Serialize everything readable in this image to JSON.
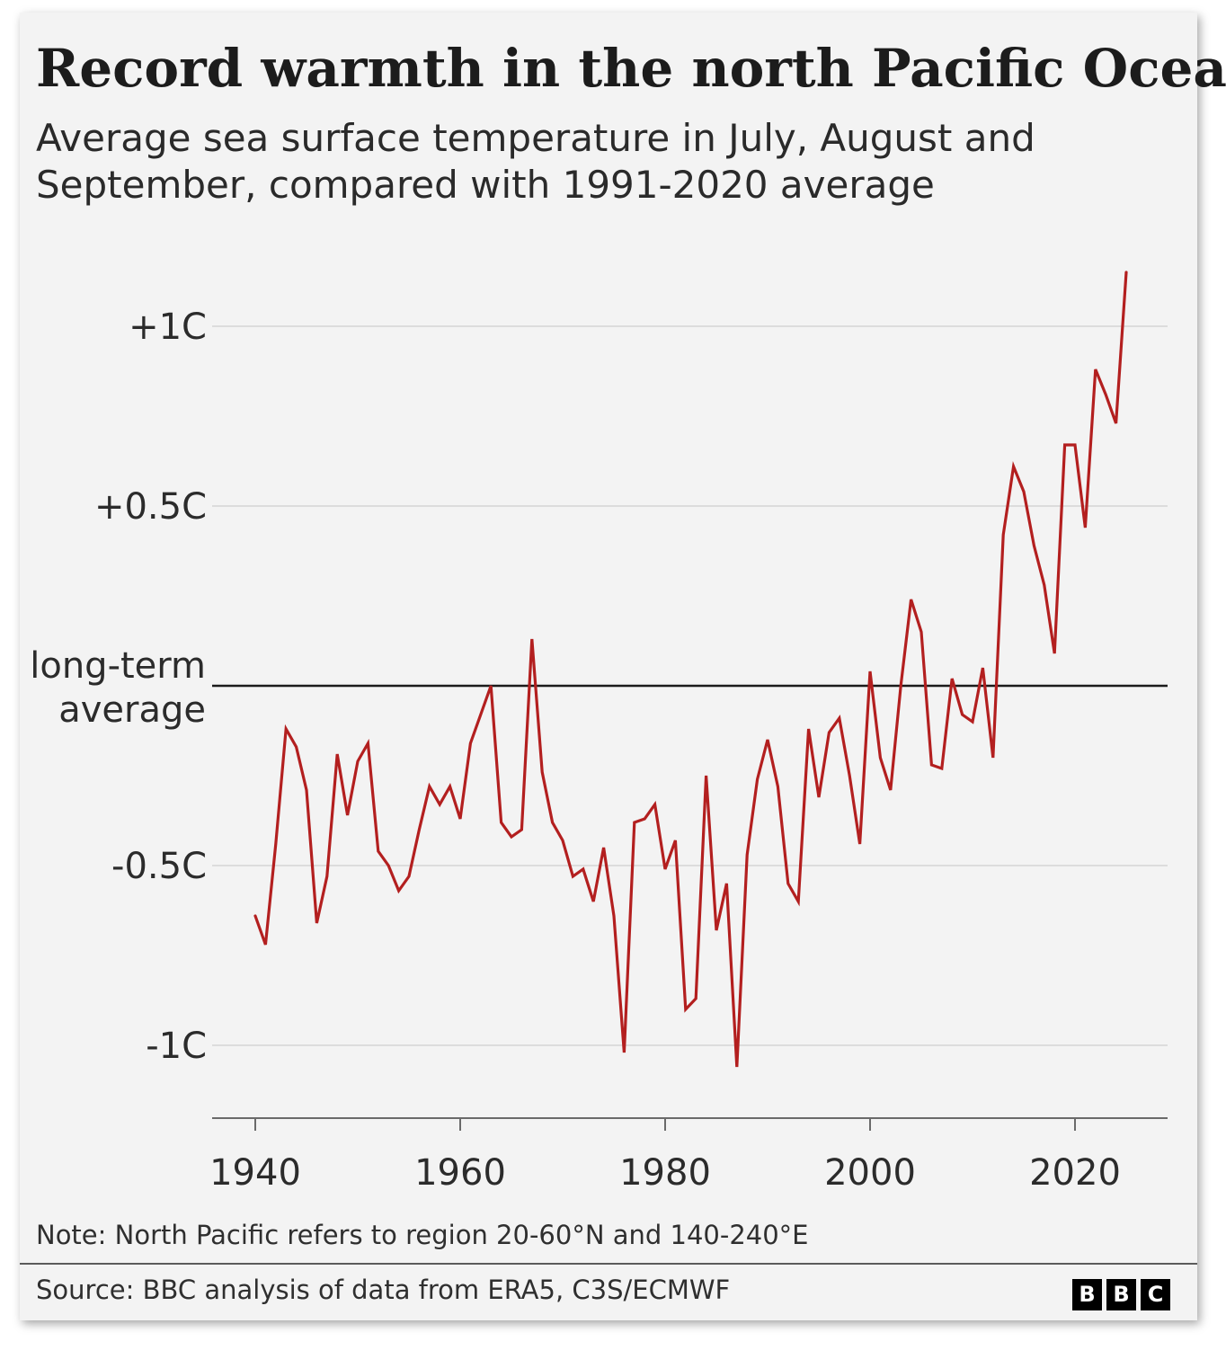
{
  "chart_data": {
    "type": "line",
    "title": "Record warmth in the north Pacific Ocean",
    "subtitle_lines": [
      "Average sea surface temperature in July, August and",
      "September, compared with 1991-2020 average"
    ],
    "xlabel": "",
    "ylabel": "",
    "xlim": [
      1936,
      2030
    ],
    "ylim": [
      -1.2,
      1.2
    ],
    "x_ticks": [
      1940,
      1960,
      1980,
      2000,
      2020
    ],
    "x_tick_labels": [
      "1940",
      "1960",
      "1980",
      "2000",
      "2020"
    ],
    "y_ticks": [
      {
        "value": 1,
        "label": "+1C"
      },
      {
        "value": 0.5,
        "label": "+0.5C"
      },
      {
        "value": -0.5,
        "label": "-0.5C"
      },
      {
        "value": -1,
        "label": "-1C"
      }
    ],
    "reference_line": {
      "value": 0,
      "label_lines": [
        "long-term",
        "average"
      ]
    },
    "grid": true,
    "series": [
      {
        "color": "#b31f1f",
        "x": [
          1940,
          1941,
          1942,
          1943,
          1944,
          1945,
          1946,
          1947,
          1948,
          1949,
          1950,
          1951,
          1952,
          1953,
          1954,
          1955,
          1956,
          1957,
          1958,
          1959,
          1960,
          1961,
          1962,
          1963,
          1964,
          1965,
          1966,
          1967,
          1968,
          1969,
          1970,
          1971,
          1972,
          1973,
          1974,
          1975,
          1976,
          1977,
          1978,
          1979,
          1980,
          1981,
          1982,
          1983,
          1984,
          1985,
          1986,
          1987,
          1988,
          1989,
          1990,
          1991,
          1992,
          1993,
          1994,
          1995,
          1996,
          1997,
          1998,
          1999,
          2000,
          2001,
          2002,
          2003,
          2004,
          2005,
          2006,
          2007,
          2008,
          2009,
          2010,
          2011,
          2012,
          2013,
          2014,
          2015,
          2016,
          2017,
          2018,
          2019,
          2020,
          2021,
          2022,
          2023,
          2024,
          2025
        ],
        "values": [
          -0.64,
          -0.72,
          -0.44,
          -0.12,
          -0.17,
          -0.29,
          -0.66,
          -0.53,
          -0.19,
          -0.36,
          -0.21,
          -0.16,
          -0.46,
          -0.5,
          -0.57,
          -0.53,
          -0.4,
          -0.28,
          -0.33,
          -0.28,
          -0.37,
          -0.16,
          -0.08,
          0.0,
          -0.38,
          -0.42,
          -0.4,
          0.13,
          -0.24,
          -0.38,
          -0.43,
          -0.53,
          -0.51,
          -0.6,
          -0.45,
          -0.64,
          -1.02,
          -0.38,
          -0.37,
          -0.33,
          -0.51,
          -0.43,
          -0.9,
          -0.87,
          -0.25,
          -0.68,
          -0.55,
          -1.06,
          -0.47,
          -0.26,
          -0.15,
          -0.28,
          -0.55,
          -0.6,
          -0.12,
          -0.31,
          -0.13,
          -0.09,
          -0.25,
          -0.44,
          0.04,
          -0.2,
          -0.29,
          0.0,
          0.24,
          0.15,
          -0.22,
          -0.23,
          0.02,
          -0.08,
          -0.1,
          0.05,
          -0.2,
          0.42,
          0.61,
          0.54,
          0.39,
          0.28,
          0.09,
          0.67,
          0.67,
          0.44,
          0.88,
          0.81,
          0.73,
          1.15
        ]
      }
    ],
    "note": "Note: North Pacific refers to region 20-60°N and 140-240°E",
    "source": "Source: BBC analysis of data from ERA5, C3S/ECMWF",
    "logo_letters": [
      "B",
      "B",
      "C"
    ],
    "colors": {
      "line": "#b31f1f",
      "grid": "#dcdcdc",
      "reference": "#1a1a1a",
      "background": "#f3f3f3"
    }
  }
}
